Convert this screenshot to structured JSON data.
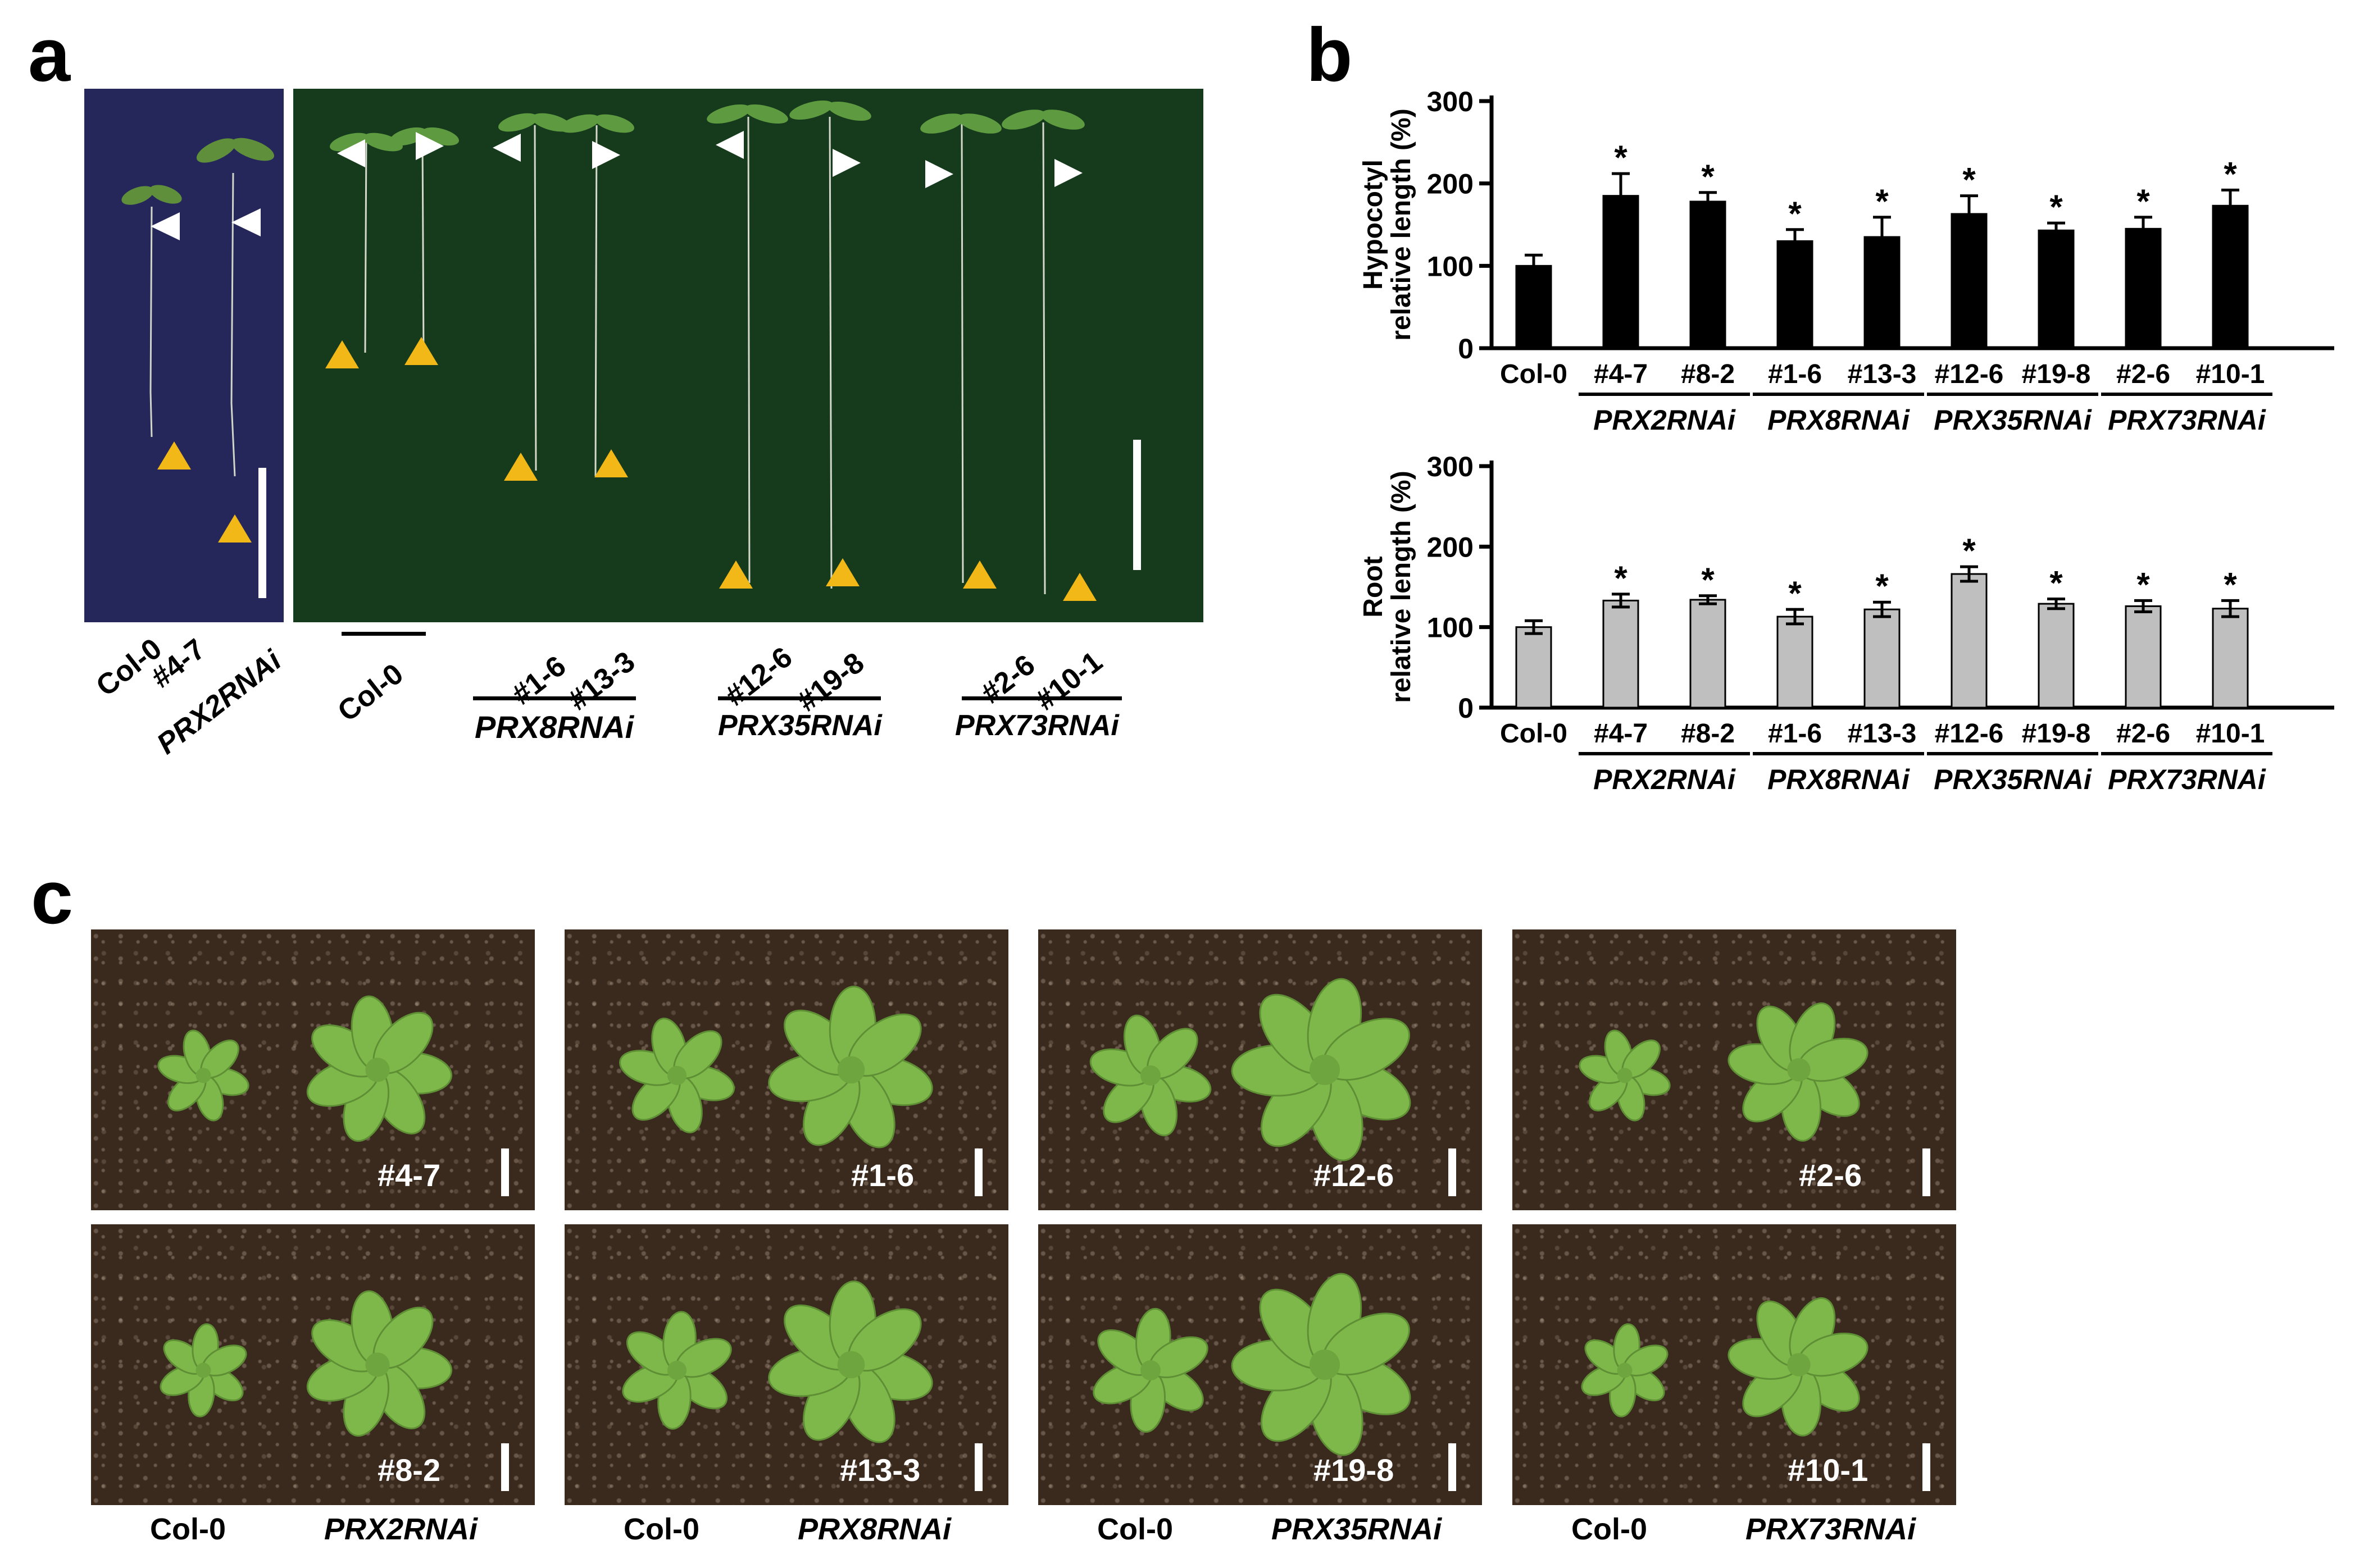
{
  "panel_labels": {
    "a": "a",
    "b": "b",
    "c": "c"
  },
  "panel_a": {
    "left_photo": {
      "lines": [
        "Col-0",
        "#4-7"
      ],
      "group": "PRX2RNAi"
    },
    "right_photo": {
      "groups": [
        {
          "lines": [
            "Col-0"
          ],
          "group": ""
        },
        {
          "lines": [
            "#1-6",
            "#13-3"
          ],
          "group": "PRX8RNAi"
        },
        {
          "lines": [
            "#12-6",
            "#19-8"
          ],
          "group": "PRX35RNAi"
        },
        {
          "lines": [
            "#2-6",
            "#10-1"
          ],
          "group": "PRX73RNAi"
        }
      ]
    },
    "colors": {
      "left_bg": "#25265a",
      "right_bg": "#163a1c",
      "hypocotyl_marker": "#ffffff",
      "root_marker": "#f2b817"
    }
  },
  "chart_data": [
    {
      "type": "bar",
      "ylabel_line1": "Hypocotyl",
      "ylabel_line2": "relative length (%)",
      "categories": [
        "Col-0",
        "#4-7",
        "#8-2",
        "#1-6",
        "#13-3",
        "#12-6",
        "#19-8",
        "#2-6",
        "#10-1"
      ],
      "groups": [
        "PRX2RNAi",
        "PRX8RNAi",
        "PRX35RNAi",
        "PRX73RNAi"
      ],
      "values": [
        100,
        185,
        178,
        130,
        135,
        163,
        143,
        145,
        173
      ],
      "errors": [
        13,
        27,
        11,
        14,
        24,
        22,
        9,
        14,
        19
      ],
      "significant": [
        false,
        true,
        true,
        true,
        true,
        true,
        true,
        true,
        true
      ],
      "sig_marker": "*",
      "yticks": [
        0,
        100,
        200,
        300
      ],
      "ylim": [
        0,
        300
      ],
      "bar_color": "#000000"
    },
    {
      "type": "bar",
      "ylabel_line1": "Root",
      "ylabel_line2": "relative length (%)",
      "categories": [
        "Col-0",
        "#4-7",
        "#8-2",
        "#1-6",
        "#13-3",
        "#12-6",
        "#19-8",
        "#2-6",
        "#10-1"
      ],
      "groups": [
        "PRX2RNAi",
        "PRX8RNAi",
        "PRX35RNAi",
        "PRX73RNAi"
      ],
      "values": [
        100,
        133,
        134,
        113,
        122,
        166,
        129,
        126,
        123
      ],
      "errors": [
        8,
        8,
        5,
        9,
        9,
        9,
        6,
        7,
        10
      ],
      "significant": [
        false,
        true,
        true,
        true,
        true,
        true,
        true,
        true,
        true
      ],
      "sig_marker": "*",
      "yticks": [
        0,
        100,
        200,
        300
      ],
      "ylim": [
        0,
        300
      ],
      "bar_color": "#bfbfbf"
    }
  ],
  "panel_c": {
    "top_labels": [
      "#4-7",
      "#1-6",
      "#12-6",
      "#2-6"
    ],
    "bottom_labels": [
      "#8-2",
      "#13-3",
      "#19-8",
      "#10-1"
    ],
    "captions": [
      {
        "control": "Col-0",
        "mutant": "PRX2RNAi"
      },
      {
        "control": "Col-0",
        "mutant": "PRX8RNAi"
      },
      {
        "control": "Col-0",
        "mutant": "PRX35RNAi"
      },
      {
        "control": "Col-0",
        "mutant": "PRX73RNAi"
      }
    ],
    "colors": {
      "leaf": "#7fb84a",
      "soil": "#3a2a1e"
    }
  }
}
